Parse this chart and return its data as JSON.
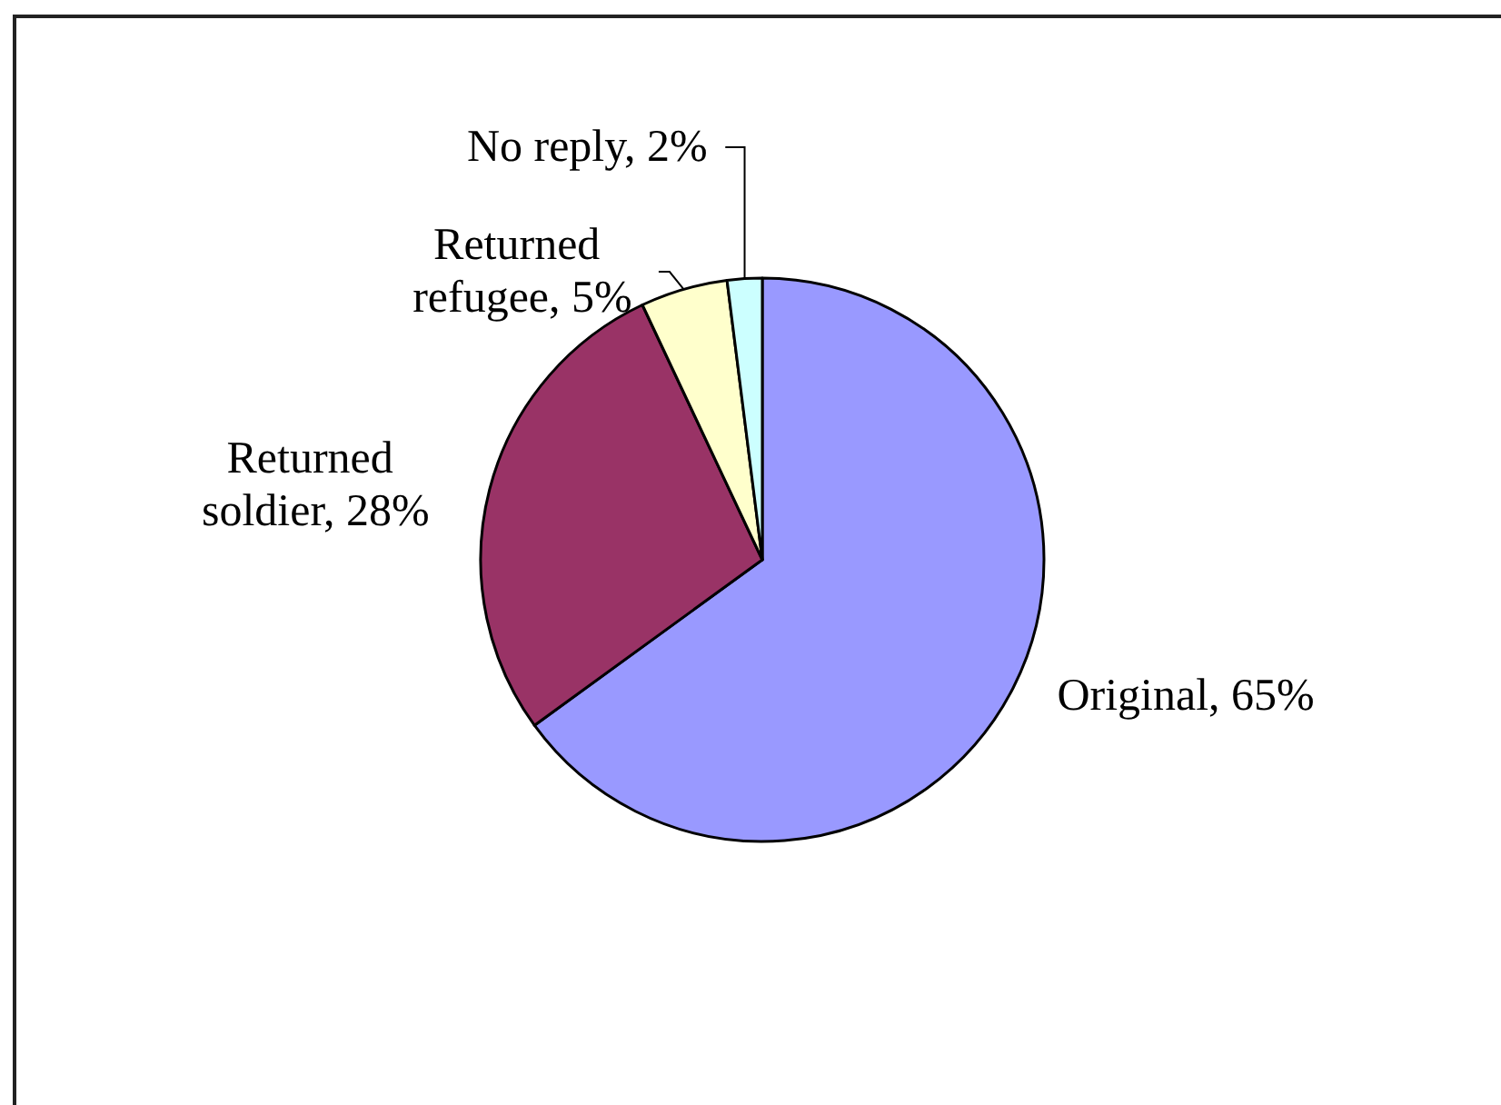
{
  "chart_data": {
    "type": "pie",
    "categories": [
      "Original",
      "Returned soldier",
      "Returned refugee",
      "No reply"
    ],
    "values": [
      65,
      28,
      5,
      2
    ],
    "value_labels": [
      "65%",
      "28%",
      "5%",
      "2%"
    ],
    "colors": [
      "#9999ff",
      "#993366",
      "#ffffcc",
      "#ccffff"
    ]
  }
}
